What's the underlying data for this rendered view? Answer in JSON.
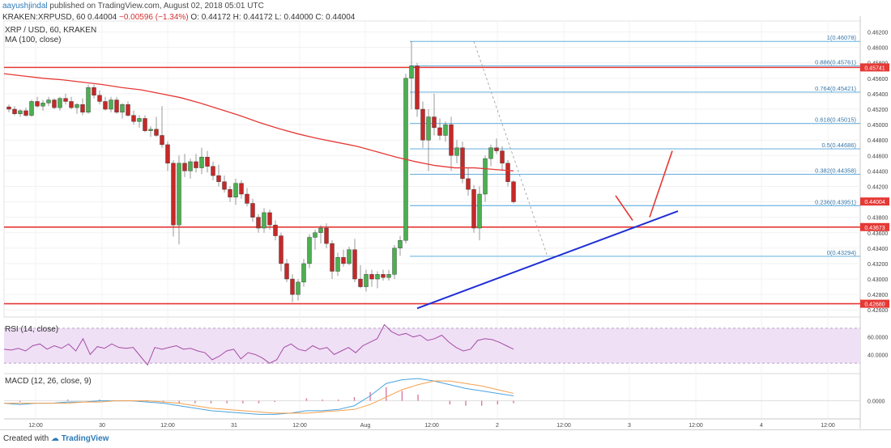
{
  "header": {
    "user": "aayushjindal",
    "published": "published on TradingView.com, August 02, 2018 05:01 UTC",
    "symbol_line_prefix": "KRAKEN:XRPUSD, 60",
    "last_price": "0.44004",
    "change": "−0.00596 (−1.34%)",
    "ohlc": "O: 0.44172  H: 0.44172  L: 0.44000  C: 0.44004"
  },
  "panel_labels": {
    "main_title": "XRP / USD, 60, KRAKEN",
    "ma_label": "MA (100, close)",
    "rsi_label": "RSI (14, close)",
    "macd_label": "MACD (12, 26, close, 9)"
  },
  "footer": {
    "created_with": "Created with",
    "brand": "TradingView"
  },
  "colors": {
    "up": "#4caf50",
    "down": "#c62828",
    "ma": "#e53935",
    "hline": "#e53935",
    "trend": "#1f2fd6",
    "fib": "#4fa3d9",
    "rsi": "#a64ca6",
    "rsi_band": "#efe0f5",
    "macd": "#4aa3df",
    "signal": "#f6a04d",
    "hist_pos": "#d87aa3",
    "hist_neg": "#d87aa3"
  },
  "chart_data": {
    "type": "candlestick",
    "y_axis": {
      "ticks": [
        "0.46200",
        "0.46000",
        "0.45800",
        "0.45600",
        "0.45400",
        "0.45200",
        "0.45000",
        "0.44800",
        "0.44600",
        "0.44400",
        "0.44200",
        "0.44000",
        "0.43800",
        "0.43600",
        "0.43400",
        "0.43200",
        "0.43000",
        "0.42800",
        "0.42600"
      ],
      "ylim": [
        0.4255,
        0.463
      ]
    },
    "x_axis": {
      "labels": [
        "12:00",
        "30",
        "12:00",
        "31",
        "12:00",
        "Aug",
        "12:00",
        "2",
        "12:00",
        "3",
        "12:00",
        "4",
        "12:00"
      ]
    },
    "price_tags": [
      {
        "label": "0.45741",
        "value": 0.45741
      },
      {
        "label": "0.44004",
        "value": 0.44004
      },
      {
        "label": "0.43673",
        "value": 0.43673
      },
      {
        "label": "0.42680",
        "value": 0.4268
      }
    ],
    "horizontal_lines": [
      0.45741,
      0.43673,
      0.4268
    ],
    "fib_levels": [
      {
        "label": "1(0.46078)",
        "value": 0.46078
      },
      {
        "label": "0.886(0.45761)",
        "value": 0.45761
      },
      {
        "label": "0.764(0.45421)",
        "value": 0.45421
      },
      {
        "label": "0.618(0.45015)",
        "value": 0.45015
      },
      {
        "label": "0.5(0.44686)",
        "value": 0.44686
      },
      {
        "label": "0.382(0.44358)",
        "value": 0.44358
      },
      {
        "label": "0.236(0.43951)",
        "value": 0.43951
      },
      {
        "label": "0(0.43294)",
        "value": 0.43294
      }
    ],
    "candles": [
      [
        0.4523,
        0.4526,
        0.4516,
        0.452
      ],
      [
        0.452,
        0.4524,
        0.4512,
        0.4514
      ],
      [
        0.4514,
        0.452,
        0.451,
        0.4518
      ],
      [
        0.4518,
        0.4522,
        0.451,
        0.4512
      ],
      [
        0.4512,
        0.4532,
        0.451,
        0.453
      ],
      [
        0.453,
        0.4536,
        0.4522,
        0.4524
      ],
      [
        0.4524,
        0.4532,
        0.4518,
        0.4528
      ],
      [
        0.4528,
        0.4536,
        0.4524,
        0.4532
      ],
      [
        0.4532,
        0.4534,
        0.452,
        0.4522
      ],
      [
        0.4522,
        0.4536,
        0.4518,
        0.4534
      ],
      [
        0.4534,
        0.454,
        0.4526,
        0.453
      ],
      [
        0.453,
        0.4536,
        0.452,
        0.4522
      ],
      [
        0.4522,
        0.4528,
        0.4514,
        0.4526
      ],
      [
        0.4526,
        0.4534,
        0.4512,
        0.4516
      ],
      [
        0.4516,
        0.4552,
        0.4514,
        0.4548
      ],
      [
        0.4548,
        0.4552,
        0.4534,
        0.4538
      ],
      [
        0.4538,
        0.4544,
        0.4526,
        0.453
      ],
      [
        0.453,
        0.4536,
        0.4518,
        0.452
      ],
      [
        0.452,
        0.4536,
        0.4516,
        0.4532
      ],
      [
        0.4532,
        0.4536,
        0.4514,
        0.4516
      ],
      [
        0.4516,
        0.4528,
        0.4508,
        0.4526
      ],
      [
        0.4526,
        0.453,
        0.451,
        0.4512
      ],
      [
        0.4512,
        0.4518,
        0.45,
        0.4504
      ],
      [
        0.4504,
        0.4512,
        0.4496,
        0.4508
      ],
      [
        0.4508,
        0.4512,
        0.449,
        0.4492
      ],
      [
        0.4492,
        0.4498,
        0.4484,
        0.4494
      ],
      [
        0.4494,
        0.451,
        0.4484,
        0.4486
      ],
      [
        0.4486,
        0.4524,
        0.447,
        0.4474
      ],
      [
        0.4474,
        0.4478,
        0.444,
        0.445
      ],
      [
        0.445,
        0.4454,
        0.4355,
        0.437
      ],
      [
        0.437,
        0.446,
        0.4345,
        0.445
      ],
      [
        0.445,
        0.4462,
        0.4432,
        0.444
      ],
      [
        0.444,
        0.4456,
        0.443,
        0.4452
      ],
      [
        0.4452,
        0.4462,
        0.4438,
        0.4444
      ],
      [
        0.4444,
        0.447,
        0.4436,
        0.4458
      ],
      [
        0.4458,
        0.4466,
        0.4438,
        0.4446
      ],
      [
        0.4446,
        0.4452,
        0.4428,
        0.4434
      ],
      [
        0.4434,
        0.4448,
        0.442,
        0.4426
      ],
      [
        0.4426,
        0.4434,
        0.4412,
        0.4416
      ],
      [
        0.4416,
        0.442,
        0.44,
        0.4406
      ],
      [
        0.4406,
        0.443,
        0.4396,
        0.4424
      ],
      [
        0.4424,
        0.4428,
        0.4404,
        0.441
      ],
      [
        0.441,
        0.4418,
        0.4394,
        0.4398
      ],
      [
        0.4398,
        0.4404,
        0.4374,
        0.438
      ],
      [
        0.438,
        0.4384,
        0.436,
        0.4366
      ],
      [
        0.4366,
        0.4392,
        0.436,
        0.4386
      ],
      [
        0.4386,
        0.439,
        0.4364,
        0.437
      ],
      [
        0.437,
        0.4376,
        0.435,
        0.4356
      ],
      [
        0.4356,
        0.436,
        0.431,
        0.432
      ],
      [
        0.432,
        0.4326,
        0.4296,
        0.43
      ],
      [
        0.43,
        0.4306,
        0.427,
        0.428
      ],
      [
        0.428,
        0.43,
        0.4272,
        0.4296
      ],
      [
        0.4296,
        0.4326,
        0.429,
        0.432
      ],
      [
        0.432,
        0.4358,
        0.4314,
        0.4354
      ],
      [
        0.4354,
        0.4364,
        0.4338,
        0.436
      ],
      [
        0.436,
        0.437,
        0.4346,
        0.4366
      ],
      [
        0.4366,
        0.4372,
        0.434,
        0.4346
      ],
      [
        0.4346,
        0.435,
        0.43,
        0.431
      ],
      [
        0.431,
        0.4334,
        0.4304,
        0.4328
      ],
      [
        0.4328,
        0.4338,
        0.4316,
        0.432
      ],
      [
        0.432,
        0.4342,
        0.4318,
        0.4338
      ],
      [
        0.4338,
        0.4352,
        0.4296,
        0.43
      ],
      [
        0.43,
        0.4318,
        0.4288,
        0.429
      ],
      [
        0.429,
        0.4312,
        0.4284,
        0.4306
      ],
      [
        0.4306,
        0.4312,
        0.429,
        0.43
      ],
      [
        0.43,
        0.431,
        0.4288,
        0.4306
      ],
      [
        0.4306,
        0.4312,
        0.4298,
        0.4302
      ],
      [
        0.4302,
        0.4312,
        0.4298,
        0.4306
      ],
      [
        0.4306,
        0.4344,
        0.43,
        0.434
      ],
      [
        0.434,
        0.4356,
        0.433,
        0.435
      ],
      [
        0.435,
        0.4566,
        0.4346,
        0.456
      ],
      [
        0.456,
        0.4608,
        0.452,
        0.4576
      ],
      [
        0.4576,
        0.458,
        0.451,
        0.452
      ],
      [
        0.452,
        0.453,
        0.447,
        0.448
      ],
      [
        0.448,
        0.452,
        0.444,
        0.451
      ],
      [
        0.451,
        0.454,
        0.4486,
        0.4496
      ],
      [
        0.4496,
        0.4508,
        0.448,
        0.4486
      ],
      [
        0.4486,
        0.4504,
        0.4478,
        0.45
      ],
      [
        0.45,
        0.451,
        0.444,
        0.446
      ],
      [
        0.446,
        0.448,
        0.445,
        0.447
      ],
      [
        0.447,
        0.4478,
        0.4424,
        0.443
      ],
      [
        0.443,
        0.4444,
        0.4408,
        0.4416
      ],
      [
        0.4416,
        0.4422,
        0.436,
        0.4366
      ],
      [
        0.4366,
        0.442,
        0.435,
        0.441
      ],
      [
        0.441,
        0.446,
        0.44,
        0.4456
      ],
      [
        0.4456,
        0.4474,
        0.4446,
        0.447
      ],
      [
        0.447,
        0.4482,
        0.4462,
        0.4466
      ],
      [
        0.4466,
        0.4472,
        0.444,
        0.445
      ],
      [
        0.445,
        0.4454,
        0.442,
        0.4426
      ],
      [
        0.4426,
        0.4428,
        0.4398,
        0.44
      ]
    ],
    "ma100": [
      0.4566,
      0.4563,
      0.456,
      0.4558,
      0.4555,
      0.4552,
      0.4548,
      0.4545,
      0.454,
      0.4535,
      0.4528,
      0.452,
      0.4512,
      0.4503,
      0.4495,
      0.4488,
      0.4482,
      0.4477,
      0.4472,
      0.4465,
      0.4458,
      0.4452,
      0.4447,
      0.4444,
      0.4444,
      0.4442,
      0.444
    ],
    "rsi": {
      "ylim": [
        20,
        80
      ],
      "ticks": [
        "60.0000",
        "40.0000"
      ],
      "band": [
        30,
        70
      ],
      "values": [
        46,
        45,
        47,
        44,
        50,
        52,
        46,
        50,
        47,
        52,
        44,
        58,
        40,
        49,
        47,
        52,
        48,
        47,
        48,
        38,
        28,
        48,
        46,
        48,
        50,
        46,
        47,
        44,
        42,
        34,
        38,
        44,
        46,
        35,
        42,
        40,
        36,
        30,
        34,
        48,
        52,
        46,
        44,
        50,
        46,
        48,
        40,
        44,
        48,
        42,
        50,
        54,
        58,
        74,
        66,
        62,
        64,
        60,
        62,
        56,
        58,
        62,
        54,
        48,
        44,
        46,
        56,
        58,
        57,
        54,
        50,
        46
      ]
    },
    "macd": {
      "ylim": [
        -0.0014,
        0.0022
      ],
      "tick": "0.0000",
      "macd": [
        -0.0002,
        -0.0003,
        -0.0002,
        -0.0002,
        -0.0001,
        -0.0001,
        0.0,
        0.0,
        0.0,
        -0.0001,
        -0.0002,
        -0.0004,
        -0.0006,
        -0.0008,
        -0.0009,
        -0.001,
        -0.0011,
        -0.0011,
        -0.001,
        -0.0008,
        -0.0008,
        -0.0007,
        -0.0004,
        0.0004,
        0.0014,
        0.0017,
        0.0018,
        0.0016,
        0.0013,
        0.001,
        0.0008,
        0.0006,
        0.0004
      ],
      "signal": [
        -0.0002,
        -0.0002,
        -0.0002,
        -0.0002,
        -0.0002,
        -0.0001,
        -0.0001,
        0.0,
        0.0,
        0.0,
        -0.0001,
        -0.0002,
        -0.0004,
        -0.0006,
        -0.0007,
        -0.0008,
        -0.0009,
        -0.001,
        -0.001,
        -0.001,
        -0.0009,
        -0.0008,
        -0.0007,
        -0.0003,
        0.0003,
        0.0009,
        0.0013,
        0.0016,
        0.0016,
        0.0014,
        0.0012,
        0.0009,
        0.0006
      ]
    },
    "overlays": {
      "trendline": [
        [
          0.4262,
          72
        ],
        [
          0.4388,
          118
        ]
      ],
      "fib_dashed": [
        [
          0.4608,
          82
        ],
        [
          0.4329,
          95
        ]
      ],
      "arrow_down": [
        [
          0.4408,
          107
        ],
        [
          0.4376,
          110
        ]
      ],
      "arrow_up": [
        [
          0.438,
          113
        ],
        [
          0.4466,
          117
        ]
      ]
    }
  }
}
